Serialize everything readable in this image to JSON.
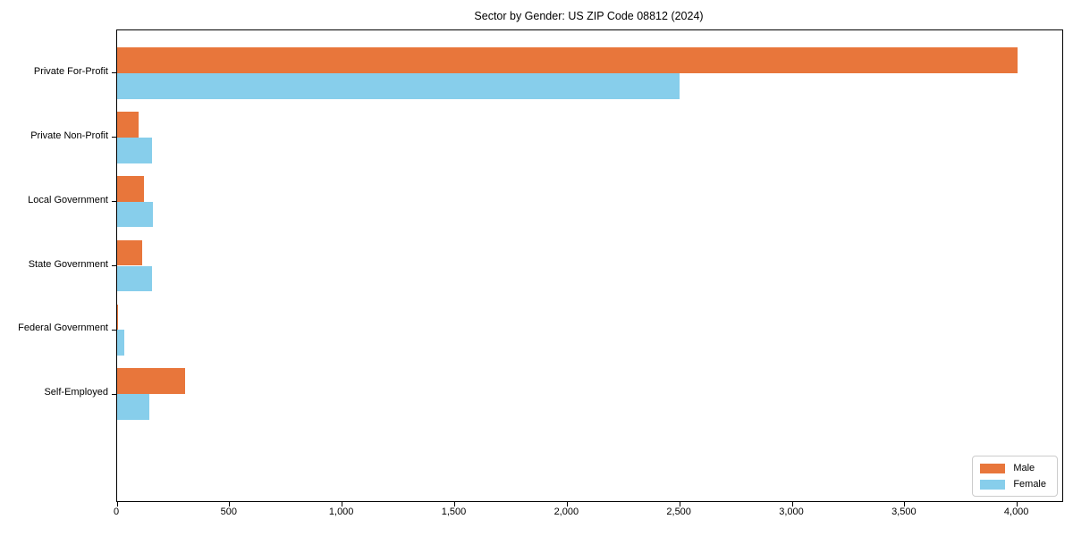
{
  "chart_data": {
    "type": "bar",
    "orientation": "horizontal",
    "title": "Sector by Gender: US ZIP Code 08812 (2024)",
    "xlabel": "",
    "ylabel": "",
    "categories": [
      "Private For-Profit",
      "Private Non-Profit",
      "Local Government",
      "State Government",
      "Federal Government",
      "Self-Employed"
    ],
    "series": [
      {
        "name": "Male",
        "color": "#e8763b",
        "values": [
          4000,
          95,
          120,
          110,
          4,
          300
        ]
      },
      {
        "name": "Female",
        "color": "#87ceeb",
        "values": [
          2500,
          155,
          160,
          155,
          30,
          145
        ]
      }
    ],
    "xlim": [
      0,
      4200
    ],
    "xticks": [
      0,
      500,
      1000,
      1500,
      2000,
      2500,
      3000,
      3500,
      4000
    ],
    "xtick_labels": [
      "0",
      "500",
      "1,000",
      "1,500",
      "2,000",
      "2,500",
      "3,000",
      "3,500",
      "4,000"
    ],
    "grid": false,
    "legend": {
      "position": "lower right",
      "entries": [
        "Male",
        "Female"
      ]
    }
  },
  "colors": {
    "male": "#e8763b",
    "female": "#87ceeb",
    "spine": "#000000",
    "legend_border": "#cccccc",
    "background": "#ffffff"
  }
}
